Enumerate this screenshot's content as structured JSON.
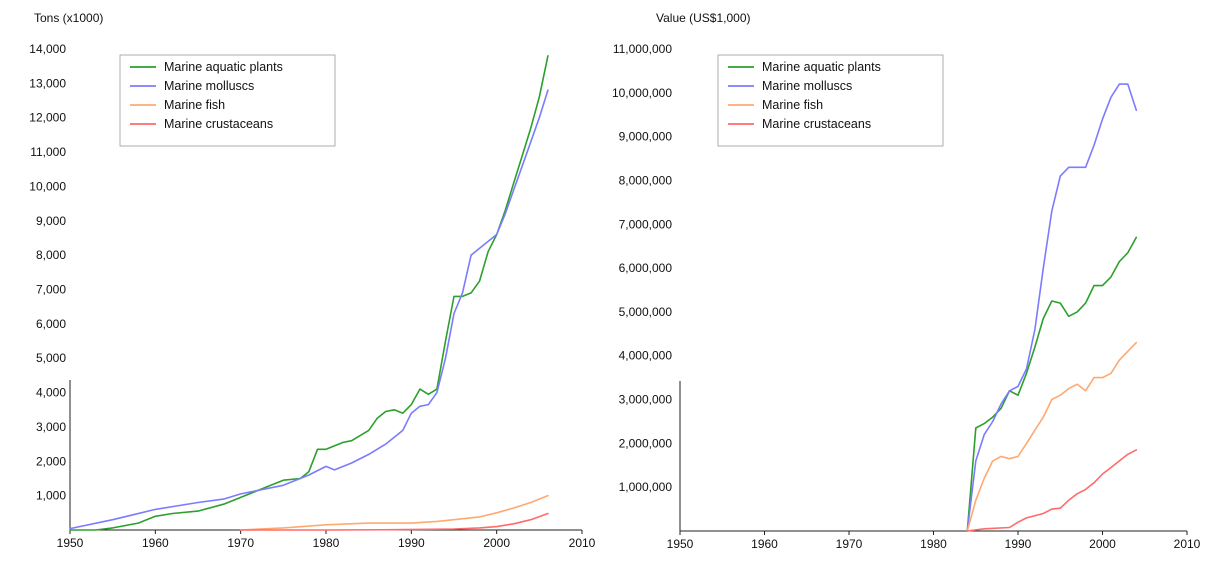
{
  "chart_data": [
    {
      "type": "line",
      "title": "",
      "ylabel": "Tons (x1000)",
      "xlabel": "",
      "xlim": [
        1950,
        2010
      ],
      "ylim": [
        0,
        14000
      ],
      "xticks": [
        "1950",
        "1960",
        "1970",
        "1980",
        "1990",
        "2000",
        "2010"
      ],
      "yticks": [
        "1,000",
        "2,000",
        "3,000",
        "4,000",
        "5,000",
        "6,000",
        "7,000",
        "8,000",
        "9,000",
        "10,000",
        "11,000",
        "12,000",
        "13,000",
        "14,000"
      ],
      "legend_position": "top-left",
      "series": [
        {
          "name": "Marine aquatic plants",
          "color": "#2ca02c",
          "x": [
            1950,
            1953,
            1955,
            1958,
            1960,
            1962,
            1965,
            1968,
            1970,
            1972,
            1975,
            1977,
            1978,
            1979,
            1980,
            1982,
            1983,
            1985,
            1986,
            1987,
            1988,
            1989,
            1990,
            1991,
            1992,
            1993,
            1994,
            1995,
            1996,
            1997,
            1998,
            1999,
            2000,
            2001,
            2002,
            2003,
            2004,
            2005,
            2006
          ],
          "y": [
            0,
            0,
            60,
            200,
            400,
            480,
            550,
            750,
            950,
            1150,
            1450,
            1500,
            1700,
            2350,
            2350,
            2550,
            2600,
            2900,
            3250,
            3450,
            3500,
            3400,
            3650,
            4100,
            3950,
            4100,
            5500,
            6800,
            6800,
            6900,
            7250,
            8100,
            8600,
            9300,
            10100,
            10900,
            11700,
            12600,
            13800
          ]
        },
        {
          "name": "Marine molluscs",
          "color": "#7b7bff",
          "x": [
            1950,
            1955,
            1960,
            1965,
            1968,
            1970,
            1975,
            1978,
            1980,
            1981,
            1983,
            1985,
            1987,
            1989,
            1990,
            1991,
            1992,
            1993,
            1994,
            1995,
            1996,
            1997,
            1998,
            1999,
            2000,
            2001,
            2002,
            2003,
            2004,
            2005,
            2006
          ],
          "y": [
            40,
            300,
            600,
            800,
            900,
            1050,
            1300,
            1600,
            1850,
            1750,
            1950,
            2200,
            2500,
            2900,
            3400,
            3600,
            3650,
            4000,
            5000,
            6300,
            6900,
            8000,
            8200,
            8400,
            8600,
            9200,
            9900,
            10600,
            11300,
            12000,
            12800
          ]
        },
        {
          "name": "Marine fish",
          "color": "#ffa970",
          "x": [
            1970,
            1975,
            1980,
            1985,
            1990,
            1993,
            1995,
            1998,
            2000,
            2002,
            2004,
            2006
          ],
          "y": [
            0,
            60,
            150,
            200,
            200,
            250,
            300,
            380,
            500,
            640,
            800,
            1000
          ]
        },
        {
          "name": "Marine crustaceans",
          "color": "#ff6a6a",
          "x": [
            1970,
            1980,
            1988,
            1995,
            1998,
            2000,
            2002,
            2004,
            2006
          ],
          "y": [
            0,
            0,
            10,
            30,
            60,
            100,
            180,
            300,
            480
          ]
        }
      ]
    },
    {
      "type": "line",
      "title": "",
      "ylabel": "Value (US$1,000)",
      "xlabel": "",
      "xlim": [
        1950,
        2010
      ],
      "ylim": [
        0,
        11000000
      ],
      "xticks": [
        "1950",
        "1960",
        "1970",
        "1980",
        "1990",
        "2000",
        "2010"
      ],
      "yticks": [
        "1,000,000",
        "2,000,000",
        "3,000,000",
        "4,000,000",
        "5,000,000",
        "6,000,000",
        "7,000,000",
        "8,000,000",
        "9,000,000",
        "10,000,000",
        "11,000,000"
      ],
      "legend_position": "top-left",
      "series": [
        {
          "name": "Marine aquatic plants",
          "color": "#2ca02c",
          "x": [
            1984,
            1985,
            1986,
            1987,
            1988,
            1989,
            1990,
            1991,
            1992,
            1993,
            1994,
            1995,
            1996,
            1997,
            1998,
            1999,
            2000,
            2001,
            2002,
            2003,
            2004
          ],
          "y": [
            0,
            2350000,
            2450000,
            2600000,
            2800000,
            3200000,
            3100000,
            3600000,
            4200000,
            4850000,
            5250000,
            5200000,
            4900000,
            5000000,
            5200000,
            5600000,
            5600000,
            5800000,
            6150000,
            6350000,
            6700000
          ]
        },
        {
          "name": "Marine molluscs",
          "color": "#7b7bff",
          "x": [
            1984,
            1985,
            1986,
            1987,
            1988,
            1989,
            1990,
            1991,
            1992,
            1993,
            1994,
            1995,
            1996,
            1997,
            1998,
            1999,
            2000,
            2001,
            2002,
            2003,
            2004
          ],
          "y": [
            0,
            1600000,
            2200000,
            2500000,
            2900000,
            3200000,
            3300000,
            3700000,
            4600000,
            6000000,
            7300000,
            8100000,
            8300000,
            8300000,
            8300000,
            8800000,
            9400000,
            9900000,
            10200000,
            10200000,
            9600000
          ]
        },
        {
          "name": "Marine fish",
          "color": "#ffa970",
          "x": [
            1984,
            1985,
            1986,
            1987,
            1988,
            1989,
            1990,
            1991,
            1992,
            1993,
            1994,
            1995,
            1996,
            1997,
            1998,
            1999,
            2000,
            2001,
            2002,
            2003,
            2004
          ],
          "y": [
            0,
            700000,
            1200000,
            1600000,
            1700000,
            1650000,
            1700000,
            2000000,
            2300000,
            2600000,
            3000000,
            3100000,
            3250000,
            3350000,
            3200000,
            3500000,
            3500000,
            3600000,
            3900000,
            4100000,
            4300000
          ]
        },
        {
          "name": "Marine crustaceans",
          "color": "#ff6a6a",
          "x": [
            1984,
            1986,
            1989,
            1990,
            1991,
            1993,
            1994,
            1995,
            1996,
            1997,
            1998,
            1999,
            2000,
            2001,
            2002,
            2003,
            2004
          ],
          "y": [
            0,
            50000,
            80000,
            200000,
            300000,
            400000,
            500000,
            520000,
            700000,
            850000,
            950000,
            1100000,
            1300000,
            1450000,
            1600000,
            1750000,
            1850000
          ]
        }
      ]
    }
  ]
}
